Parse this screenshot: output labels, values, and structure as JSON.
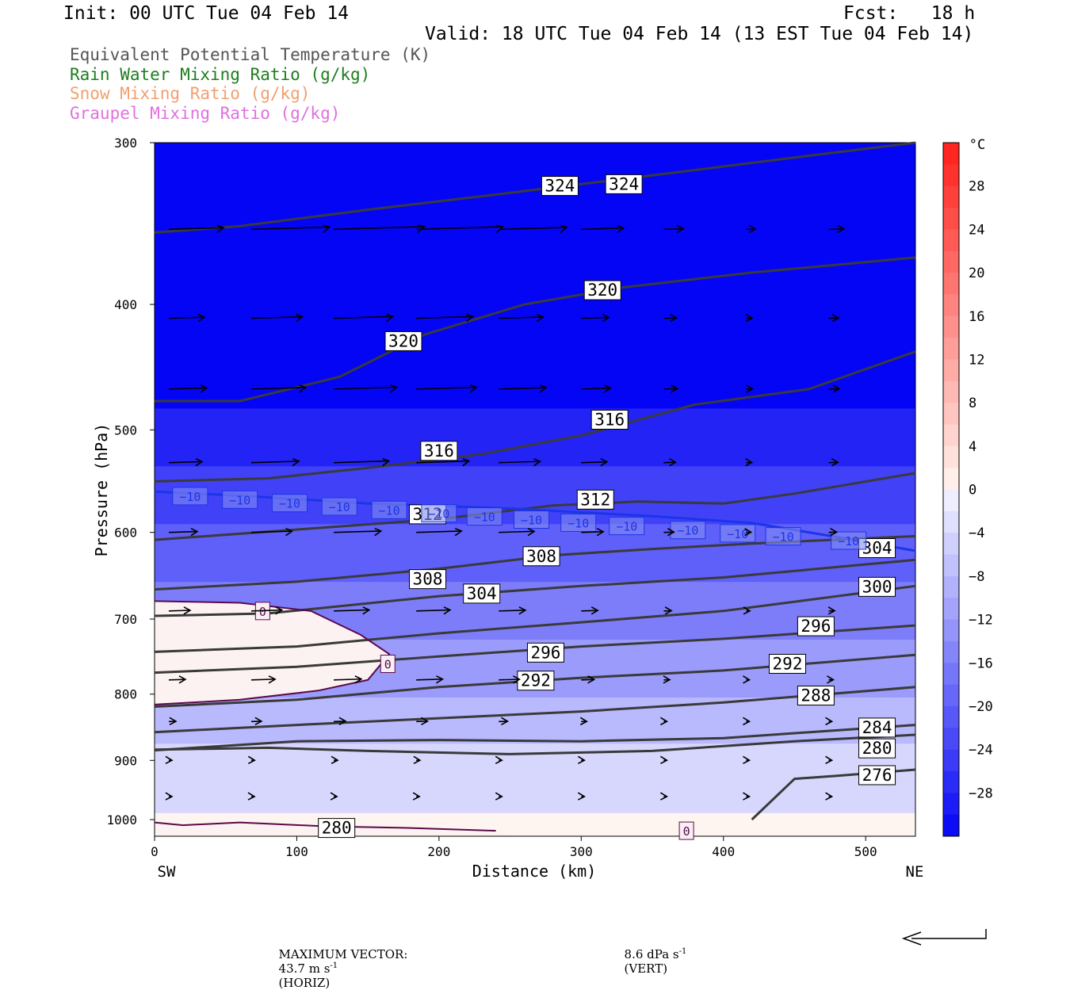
{
  "header": {
    "init": "Init: 00 UTC Tue 04 Feb 14",
    "fcst": "Fcst:   18 h",
    "valid": "Valid: 18 UTC Tue 04 Feb 14 (13 EST Tue 04 Feb 14)"
  },
  "legend": [
    {
      "label": "Equivalent Potential Temperature (K)",
      "color": "#555555"
    },
    {
      "label": "Rain Water Mixing Ratio (g/kg)",
      "color": "#1e7d1e"
    },
    {
      "label": "Snow Mixing Ratio (g/kg)",
      "color": "#f0a070"
    },
    {
      "label": "Graupel Mixing Ratio (g/kg)",
      "color": "#e070e0"
    }
  ],
  "chart_data": {
    "type": "heatmap",
    "xlabel": "Distance (km)",
    "ylabel": "Pressure (hPa)",
    "x_ticks": [
      0,
      100,
      200,
      300,
      400,
      500
    ],
    "y_ticks": [
      300,
      400,
      500,
      600,
      700,
      800,
      900,
      1000
    ],
    "xlim": [
      0,
      535
    ],
    "ylim": [
      1030,
      300
    ],
    "y_scale": "log",
    "x_end_labels": {
      "left": "SW",
      "right": "NE"
    },
    "colorbar": {
      "unit": "°C",
      "labels": [
        28,
        24,
        20,
        16,
        12,
        8,
        4,
        0,
        -4,
        -8,
        -12,
        -16,
        -20,
        -24,
        -28
      ],
      "range": [
        -32,
        32
      ]
    },
    "theta_e_contours": [
      {
        "value": 324,
        "points": [
          [
            0,
            352
          ],
          [
            60,
            348
          ],
          [
            150,
            338
          ],
          [
            250,
            328
          ],
          [
            350,
            318
          ],
          [
            450,
            308
          ],
          [
            535,
            300
          ]
        ],
        "labels": [
          [
            285,
            324
          ],
          [
            330,
            323
          ]
        ]
      },
      {
        "value": 320,
        "points": [
          [
            0,
            475
          ],
          [
            60,
            475
          ],
          [
            130,
            455
          ],
          [
            190,
            422
          ],
          [
            260,
            400
          ],
          [
            330,
            388
          ],
          [
            420,
            378
          ],
          [
            535,
            368
          ]
        ],
        "labels": [
          [
            175,
            427
          ],
          [
            315,
            390
          ]
        ]
      },
      {
        "value": 316,
        "points": [
          [
            0,
            548
          ],
          [
            80,
            545
          ],
          [
            150,
            535
          ],
          [
            230,
            522
          ],
          [
            300,
            505
          ],
          [
            380,
            478
          ],
          [
            460,
            465
          ],
          [
            535,
            435
          ]
        ],
        "labels": [
          [
            200,
            519
          ],
          [
            320,
            491
          ]
        ]
      },
      {
        "value": 312,
        "points": [
          [
            0,
            608
          ],
          [
            100,
            597
          ],
          [
            200,
            586
          ],
          [
            280,
            572
          ],
          [
            340,
            568
          ],
          [
            400,
            570
          ],
          [
            450,
            560
          ],
          [
            535,
            540
          ]
        ],
        "labels": [
          [
            192,
            581
          ],
          [
            310,
            566
          ]
        ]
      },
      {
        "value": 308,
        "points": [
          [
            0,
            664
          ],
          [
            100,
            655
          ],
          [
            200,
            640
          ],
          [
            280,
            625
          ],
          [
            350,
            618
          ],
          [
            420,
            612
          ],
          [
            535,
            604
          ]
        ],
        "labels": [
          [
            192,
            652
          ],
          [
            272,
            626
          ]
        ]
      },
      {
        "value": 304,
        "points": [
          [
            0,
            696
          ],
          [
            80,
            693
          ],
          [
            200,
            672
          ],
          [
            300,
            660
          ],
          [
            400,
            650
          ],
          [
            535,
            630
          ]
        ],
        "labels": [
          [
            230,
            669
          ],
          [
            508,
            617
          ]
        ]
      },
      {
        "value": 300,
        "points": [
          [
            0,
            742
          ],
          [
            100,
            735
          ],
          [
            200,
            718
          ],
          [
            300,
            704
          ],
          [
            400,
            690
          ],
          [
            535,
            660
          ]
        ],
        "labels": [
          [
            508,
            661
          ]
        ]
      },
      {
        "value": 296,
        "points": [
          [
            0,
            770
          ],
          [
            100,
            762
          ],
          [
            200,
            748
          ],
          [
            300,
            735
          ],
          [
            400,
            725
          ],
          [
            535,
            708
          ]
        ],
        "labels": [
          [
            275,
            743
          ],
          [
            465,
            709
          ]
        ]
      },
      {
        "value": 292,
        "points": [
          [
            0,
            818
          ],
          [
            100,
            808
          ],
          [
            200,
            790
          ],
          [
            300,
            777
          ],
          [
            400,
            767
          ],
          [
            535,
            746
          ]
        ],
        "labels": [
          [
            268,
            781
          ],
          [
            445,
            758
          ]
        ]
      },
      {
        "value": 288,
        "points": [
          [
            0,
            856
          ],
          [
            100,
            845
          ],
          [
            200,
            835
          ],
          [
            300,
            825
          ],
          [
            400,
            812
          ],
          [
            535,
            790
          ]
        ],
        "labels": [
          [
            465,
            802
          ]
        ]
      },
      {
        "value": 284,
        "points": [
          [
            0,
            884
          ],
          [
            100,
            870
          ],
          [
            200,
            868
          ],
          [
            300,
            870
          ],
          [
            400,
            865
          ],
          [
            535,
            845
          ]
        ],
        "labels": [
          [
            508,
            849
          ]
        ]
      },
      {
        "value": 280,
        "points": [
          [
            0,
            883
          ],
          [
            80,
            880
          ],
          [
            150,
            885
          ],
          [
            250,
            890
          ],
          [
            350,
            885
          ],
          [
            450,
            870
          ],
          [
            535,
            860
          ]
        ],
        "labels": [
          [
            128,
            1015
          ],
          [
            508,
            881
          ]
        ]
      },
      {
        "value": 276,
        "points": [
          [
            420,
            1000
          ],
          [
            450,
            930
          ],
          [
            480,
            925
          ],
          [
            535,
            915
          ]
        ],
        "labels": [
          [
            508,
            924
          ]
        ]
      }
    ],
    "temp_contours": [
      {
        "value": -10,
        "color": "#1c35e8",
        "labels": [
          [
            25,
            -10
          ],
          [
            60,
            -10
          ],
          [
            95,
            -10
          ],
          [
            130,
            -10
          ],
          [
            165,
            -10
          ],
          [
            200,
            -10
          ],
          [
            232,
            -10
          ],
          [
            265,
            -10
          ],
          [
            298,
            -10
          ],
          [
            332,
            -10
          ],
          [
            375,
            -10
          ],
          [
            410,
            -10
          ],
          [
            442,
            -10
          ],
          [
            488,
            -10
          ]
        ]
      },
      {
        "value": 0,
        "color": "#5a0a4a",
        "labels": [
          [
            76,
            0
          ],
          [
            164,
            0
          ],
          [
            374,
            0
          ]
        ]
      }
    ],
    "vector_scale": {
      "label": "MAXIMUM VECTOR:",
      "horiz": "43.7 m s",
      "horiz_unit": "(HORIZ)",
      "vert": "8.6 dPa s",
      "vert_unit": "(VERT)",
      "exponent": "-1"
    }
  }
}
